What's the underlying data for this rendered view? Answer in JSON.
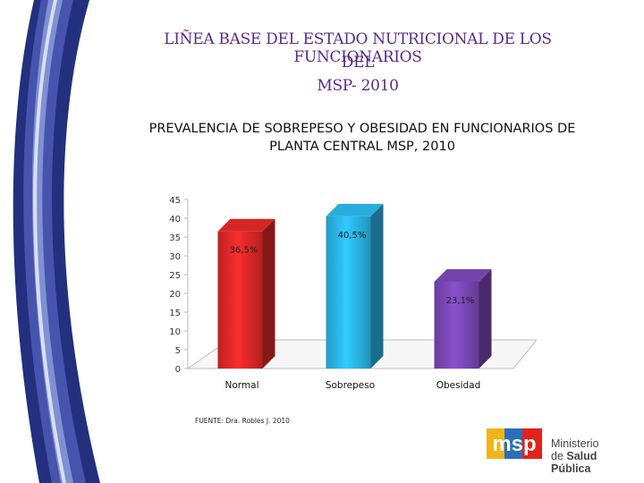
{
  "slide": {
    "title_line1": "LIÑEA BASE DEL ESTADO NUTRICIONAL DE LOS FUNCIONARIOS",
    "title_line2": "DEL",
    "title_line3": "MSP- 2010",
    "subtitle_line1": "PREVALENCIA DE SOBREPESO Y OBESIDAD EN FUNCIONARIOS DE",
    "subtitle_line2": "PLANTA CENTRAL MSP, 2010",
    "source": "FUENTE: Dra. Robles J. 2010"
  },
  "logo": {
    "letters": "msp",
    "line1": "Ministerio",
    "line2_prefix": "de ",
    "line2_bold": "Salud Pública"
  },
  "colors": {
    "title": "#5a2a86",
    "normal": "#e02828",
    "sobrepeso": "#2bb6ea",
    "obesidad": "#7a48b6"
  },
  "chart_data": {
    "type": "bar",
    "categories": [
      "Normal",
      "Sobrepeso",
      "Obesidad"
    ],
    "values": [
      36.5,
      40.5,
      23.1
    ],
    "data_labels": [
      "36,5%",
      "40,5%",
      "23,1%"
    ],
    "ylim": [
      0,
      45
    ],
    "yticks": [
      0,
      5,
      10,
      15,
      20,
      25,
      30,
      35,
      40,
      45
    ],
    "title": "PREVALENCIA DE SOBREPESO Y OBESIDAD EN FUNCIONARIOS DE PLANTA CENTRAL MSP, 2010",
    "xlabel": "",
    "ylabel": ""
  }
}
